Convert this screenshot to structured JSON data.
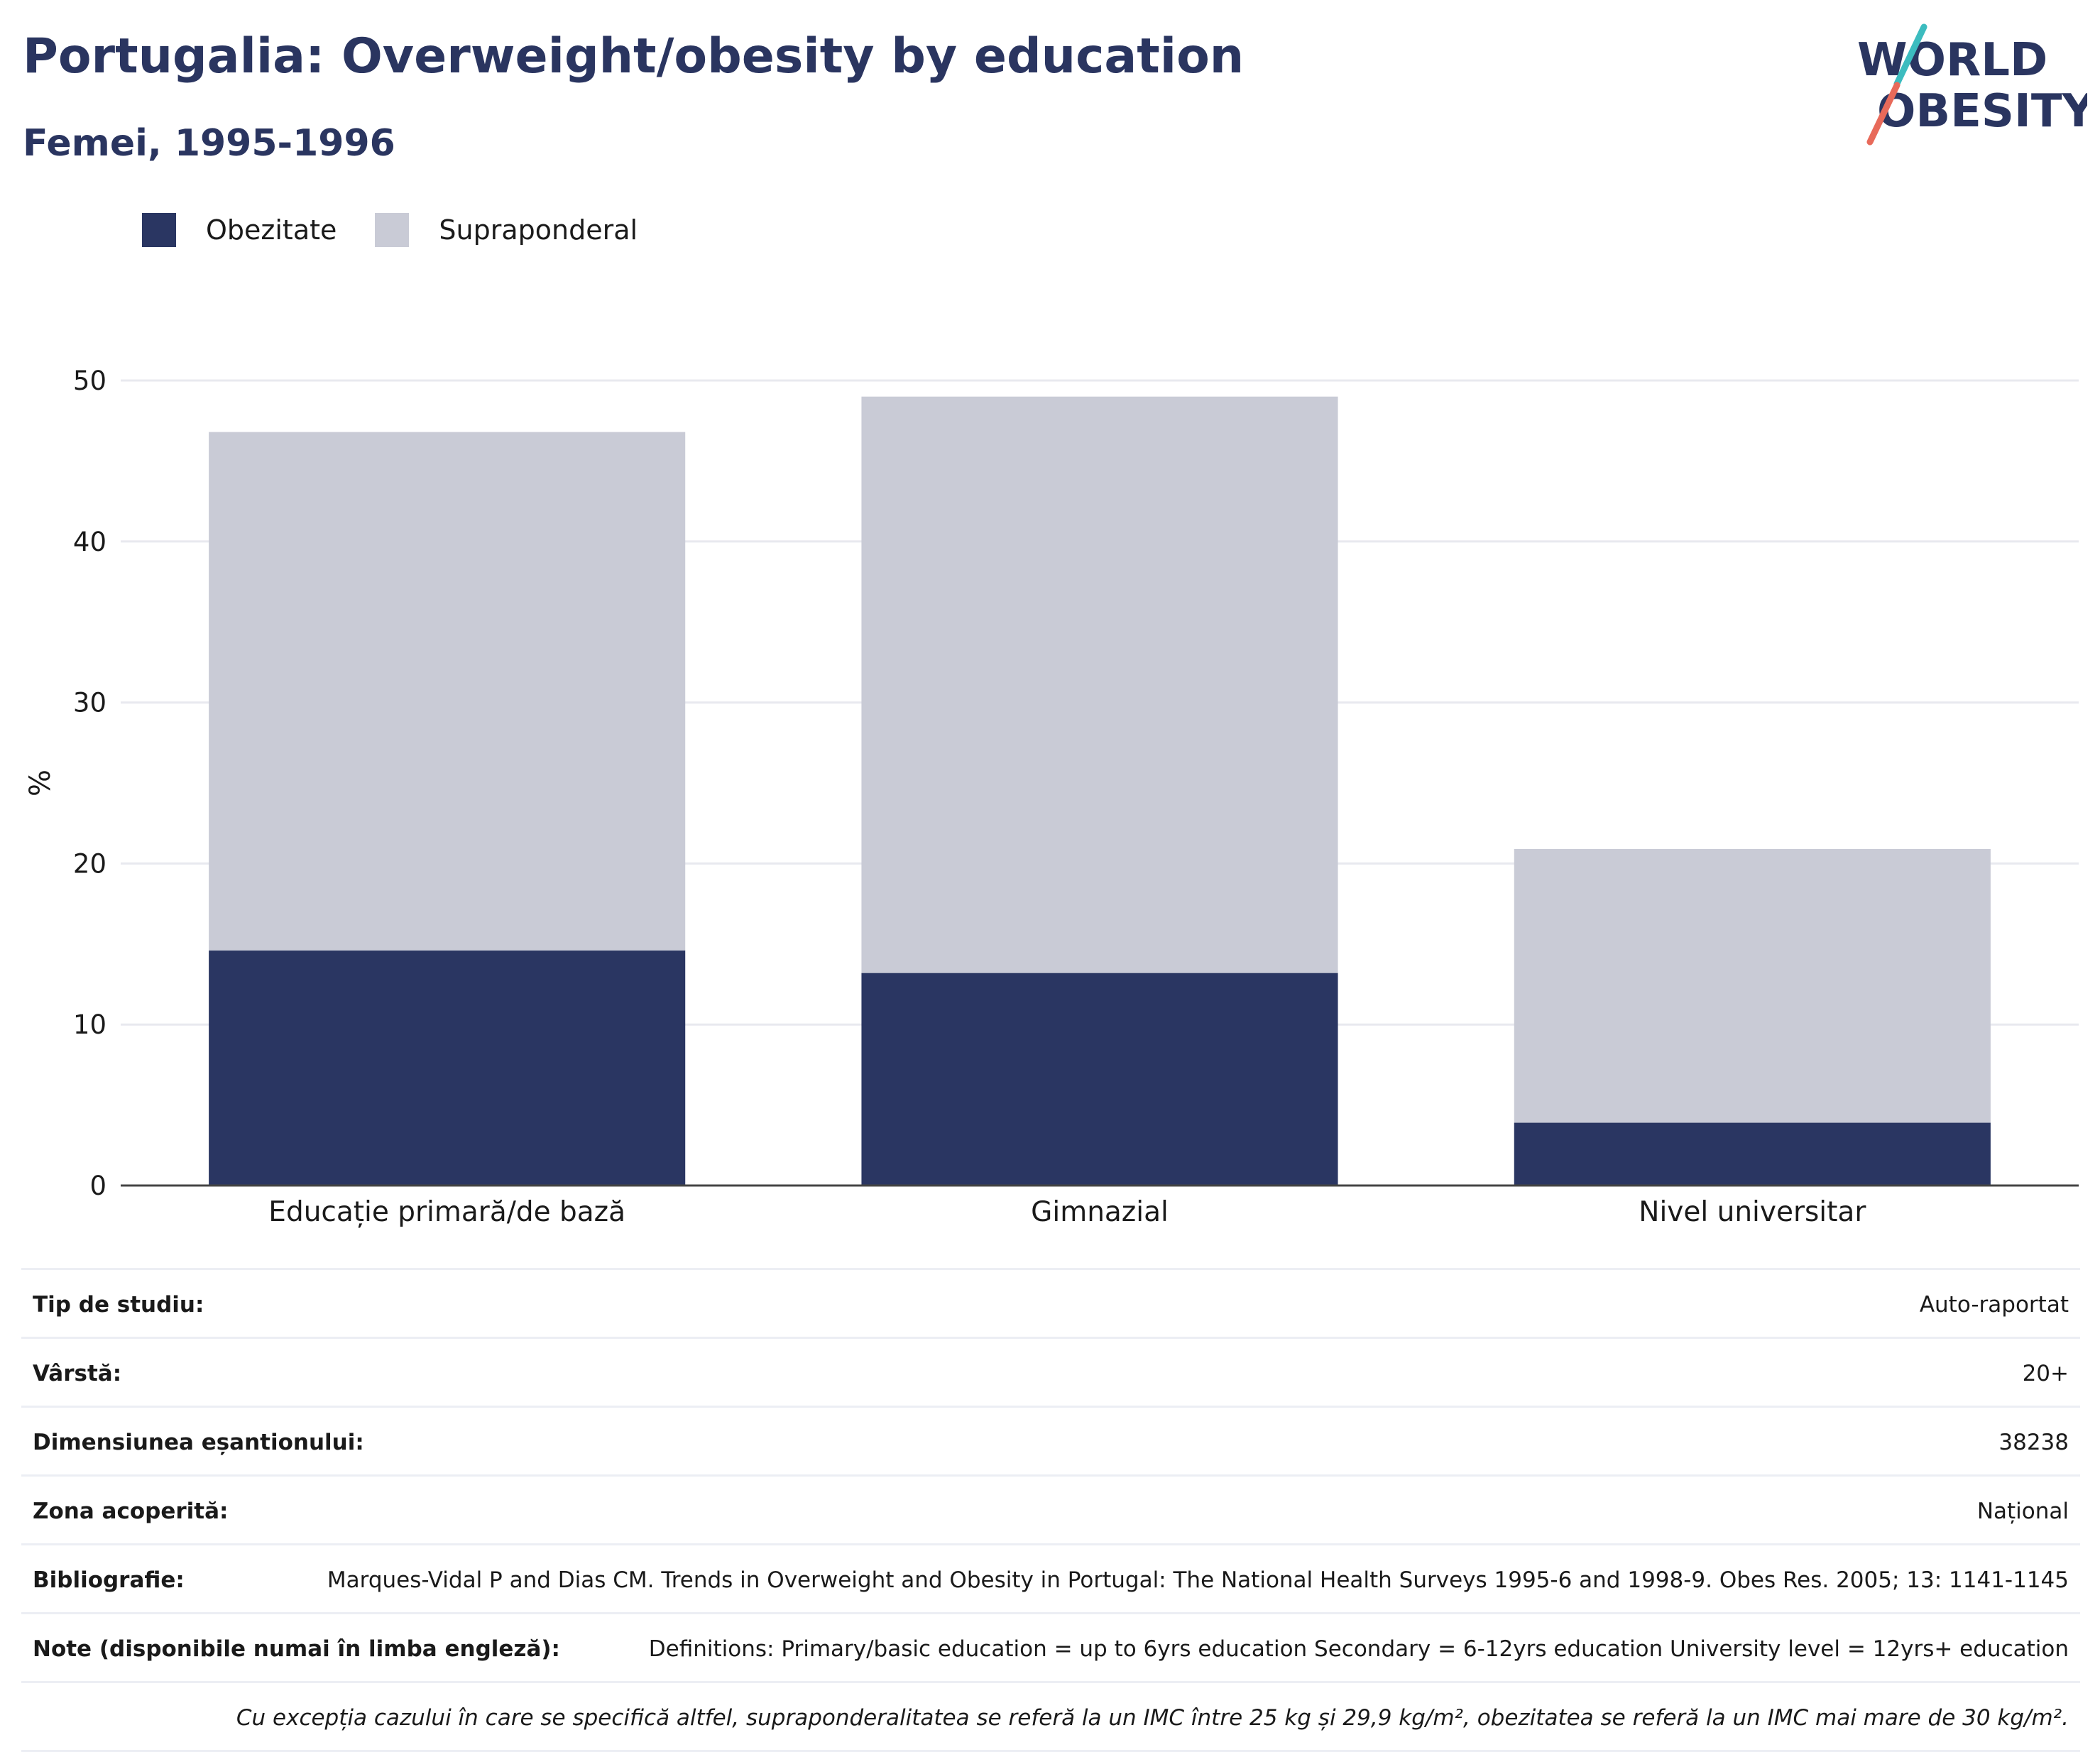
{
  "header": {
    "title": "Portugalia: Overweight/obesity by education",
    "subtitle": "Femei, 1995-1996"
  },
  "logo": {
    "line1": "WORLD",
    "line2": "OBESITY",
    "name": "world-obesity-logo"
  },
  "colors": {
    "obesity": "#2a3662",
    "overweight": "#c9cbd6",
    "text": "#2a3560",
    "teal": "#3cbcbf",
    "coral": "#e86a5a"
  },
  "chart_data": {
    "type": "bar",
    "stacked": true,
    "categories": [
      "Educație primară/de bază",
      "Gimnazial",
      "Nivel universitar"
    ],
    "series": [
      {
        "name": "Obezitate",
        "values": [
          14.6,
          13.2,
          3.9
        ]
      },
      {
        "name": "Supraponderal",
        "values": [
          32.2,
          35.8,
          17.0
        ]
      }
    ],
    "ylabel": "%",
    "ylim": [
      0,
      50
    ],
    "yticks": [
      0,
      10,
      20,
      30,
      40,
      50
    ],
    "grid": true,
    "legend_position": "top-left"
  },
  "info": [
    {
      "label": "Tip de studiu:",
      "value": "Auto-raportat"
    },
    {
      "label": "Vârstă:",
      "value": "20+"
    },
    {
      "label": "Dimensiunea eșantionului:",
      "value": "38238"
    },
    {
      "label": "Zona acoperită:",
      "value": "Național"
    },
    {
      "label": "Bibliografie:",
      "value": "Marques-Vidal P and Dias CM. Trends in Overweight and Obesity in Portugal: The National Health Surveys 1995-6 and 1998-9. Obes Res. 2005; 13: 1141-1145"
    },
    {
      "label": "Note (disponibile numai în limba engleză):",
      "value": "Definitions: Primary/basic education = up to 6yrs education Secondary = 6-12yrs education University level = 12yrs+ education"
    }
  ],
  "footnote": "Cu excepția cazului în care se specifică altfel, supraponderalitatea se referă la un IMC între 25 kg și 29,9 kg/m², obezitatea se referă la un IMC mai mare de 30 kg/m²."
}
